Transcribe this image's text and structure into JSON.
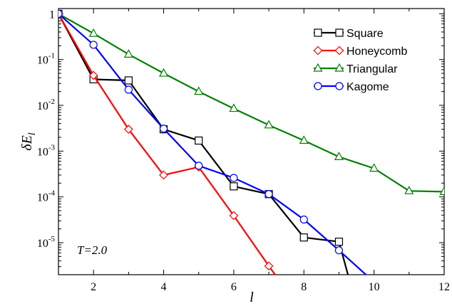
{
  "chart_data": {
    "type": "line",
    "xlabel": "l",
    "ylabel_main": "δE",
    "ylabel_sub": "l",
    "yscale": "log",
    "xlim": [
      1,
      12
    ],
    "ylim": [
      2e-06,
      1.3
    ],
    "x_ticks": [
      2,
      4,
      6,
      8,
      10,
      12
    ],
    "x_tick_labels": [
      "2",
      "4",
      "6",
      "8",
      "10",
      "12"
    ],
    "y_ticks": [
      {
        "value": 1,
        "mant": "1",
        "exp": ""
      },
      {
        "value": 0.1,
        "mant": "10",
        "exp": "-1"
      },
      {
        "value": 0.01,
        "mant": "10",
        "exp": "-2"
      },
      {
        "value": 0.001,
        "mant": "10",
        "exp": "-3"
      },
      {
        "value": 0.0001,
        "mant": "10",
        "exp": "-4"
      },
      {
        "value": 1e-05,
        "mant": "10",
        "exp": "-5"
      }
    ],
    "annotation": "T=2.0",
    "legend_position": "top-right",
    "series": [
      {
        "name": "Square",
        "color": "#000000",
        "marker": "square",
        "x": [
          1,
          2,
          3,
          4,
          5,
          6,
          7,
          8,
          9,
          9.3
        ],
        "y": [
          1.0,
          0.037,
          0.035,
          0.003,
          0.0017,
          0.00017,
          0.000115,
          1.3e-05,
          1.05e-05,
          1.5e-06
        ],
        "marker_count": 9
      },
      {
        "name": "Honeycomb",
        "color": "#ff0000",
        "marker": "diamond",
        "x": [
          1,
          2,
          3,
          4,
          5,
          6,
          7,
          7.2
        ],
        "y": [
          1.0,
          0.045,
          0.003,
          0.0003,
          0.00045,
          3.9e-05,
          3.1e-06,
          1.9e-06
        ],
        "marker_count": 7
      },
      {
        "name": "Triangular",
        "color": "#008000",
        "marker": "triangle",
        "x": [
          1,
          2,
          3,
          4,
          5,
          6,
          7,
          8,
          9,
          10,
          11,
          12
        ],
        "y": [
          1.0,
          0.37,
          0.13,
          0.05,
          0.02,
          0.0085,
          0.0037,
          0.0017,
          0.00075,
          0.00042,
          0.000135,
          0.00013
        ],
        "marker_count": 12
      },
      {
        "name": "Kagome",
        "color": "#0000ff",
        "marker": "circle",
        "x": [
          1,
          2,
          3,
          4,
          5,
          6,
          7,
          8,
          9,
          9.8
        ],
        "y": [
          1.0,
          0.21,
          0.022,
          0.0031,
          0.00048,
          0.00026,
          0.000115,
          3.2e-05,
          6.8e-06,
          1.9e-06
        ],
        "marker_count": 9
      }
    ]
  }
}
